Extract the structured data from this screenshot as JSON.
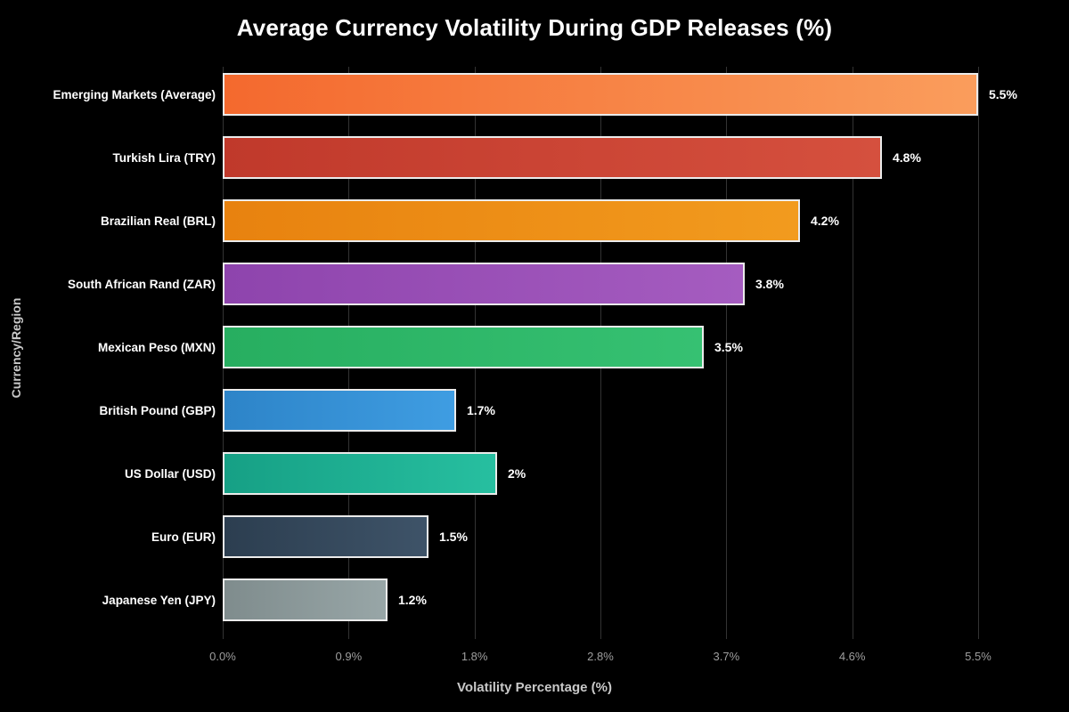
{
  "style": {
    "background": "#000000",
    "grid_color": "#333333",
    "tick_label_color": "#9e9e9e",
    "axis_title_color": "#c9c9c9",
    "text_color": "#ffffff",
    "bar_border_color": "#ebebeb"
  },
  "chart_data": {
    "type": "bar",
    "orientation": "horizontal",
    "title": "Average Currency Volatility During GDP Releases (%)",
    "xlabel": "Volatility Percentage (%)",
    "ylabel": "Currency/Region",
    "xlim": [
      0,
      5.5
    ],
    "grid": true,
    "legend": false,
    "x_ticks": [
      "0.0%",
      "0.9%",
      "1.8%",
      "2.8%",
      "3.7%",
      "4.6%",
      "5.5%"
    ],
    "categories": [
      "Emerging Markets (Average)",
      "Turkish Lira (TRY)",
      "Brazilian Real (BRL)",
      "South African Rand (ZAR)",
      "Mexican Peso (MXN)",
      "British Pound (GBP)",
      "US Dollar (USD)",
      "Euro (EUR)",
      "Japanese Yen (JPY)"
    ],
    "values": [
      5.5,
      4.8,
      4.2,
      3.8,
      3.5,
      1.7,
      2,
      1.5,
      1.2
    ],
    "bars": [
      {
        "label": "Emerging Markets (Average)",
        "value": 5.5,
        "value_label": "5.5%",
        "color_start": "#f4692e",
        "color_end": "#fa9d5c"
      },
      {
        "label": "Turkish Lira (TRY)",
        "value": 4.8,
        "value_label": "4.8%",
        "color_start": "#c0392b",
        "color_end": "#d5503e"
      },
      {
        "label": "Brazilian Real (BRL)",
        "value": 4.2,
        "value_label": "4.2%",
        "color_start": "#e8820f",
        "color_end": "#f29b1e"
      },
      {
        "label": "South African Rand (ZAR)",
        "value": 3.8,
        "value_label": "3.8%",
        "color_start": "#8e44ad",
        "color_end": "#a55cc0"
      },
      {
        "label": "Mexican Peso (MXN)",
        "value": 3.5,
        "value_label": "3.5%",
        "color_start": "#27ae60",
        "color_end": "#36c172"
      },
      {
        "label": "British Pound (GBP)",
        "value": 1.7,
        "value_label": "1.7%",
        "color_start": "#2d84c8",
        "color_end": "#3f9de2"
      },
      {
        "label": "US Dollar (USD)",
        "value": 2,
        "value_label": "2%",
        "color_start": "#16a085",
        "color_end": "#27bfa0"
      },
      {
        "label": "Euro (EUR)",
        "value": 1.5,
        "value_label": "1.5%",
        "color_start": "#2c3e50",
        "color_end": "#3e5368"
      },
      {
        "label": "Japanese Yen (JPY)",
        "value": 1.2,
        "value_label": "1.2%",
        "color_start": "#7f8c8d",
        "color_end": "#98a6a7"
      }
    ]
  }
}
